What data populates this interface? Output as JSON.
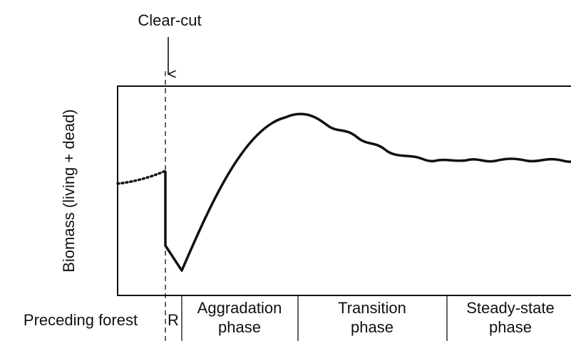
{
  "annotation": "Clear-cut",
  "y_axis_label": "Biomass (living + dead)",
  "phases": [
    {
      "lines": [
        "Preceding forest"
      ]
    },
    {
      "lines": [
        "R"
      ]
    },
    {
      "lines": [
        "Aggradation",
        "phase"
      ]
    },
    {
      "lines": [
        "Transition",
        "phase"
      ]
    },
    {
      "lines": [
        "Steady-state",
        "phase"
      ]
    }
  ]
}
